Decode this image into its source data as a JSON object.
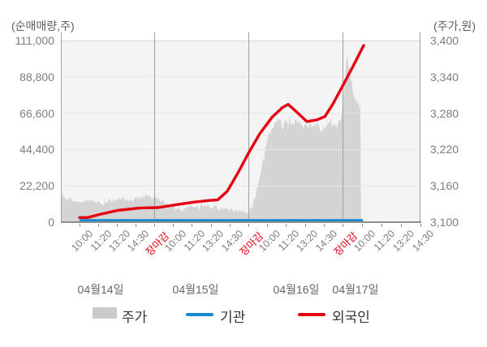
{
  "header": {
    "left_axis_title": "(순매매량,주)",
    "right_axis_title": "(주가,원)"
  },
  "colors": {
    "red": "#e60012",
    "blue": "#1588d1",
    "area": "#d4d4d4",
    "legend_area": "#cbcbcb",
    "grid": "#e7e7e7",
    "top_border": "#d6d6d6",
    "boundary": "#9f9f9f",
    "axis_text": "#7e7e7e",
    "close_text": "#e60012"
  },
  "chart_data": {
    "type": "area+line combo (intraday price area with cumulative net-buying lines)",
    "left_axis": {
      "title": "(순매매량,주)",
      "min": 0,
      "max": 111000,
      "ticks": [
        "111,000",
        "88,800",
        "66,600",
        "44,400",
        "22,200",
        "0"
      ]
    },
    "right_axis": {
      "title": "(주가,원)",
      "min": 3100,
      "max": 3400,
      "ticks": [
        "3,400",
        "3,340",
        "3,280",
        "3,220",
        "3,160",
        "3,100"
      ]
    },
    "x_axis": {
      "close_label": "장마감",
      "days": [
        {
          "label": "04월14일",
          "times": [
            "10:00",
            "11:20",
            "13:20",
            "14:30",
            "장마감"
          ]
        },
        {
          "label": "04월15일",
          "times": [
            "10:00",
            "11:20",
            "13:20",
            "14:30",
            "장마감"
          ]
        },
        {
          "label": "04월16일",
          "times": [
            "10:00",
            "11:20",
            "13:20",
            "14:30",
            "장마감"
          ]
        },
        {
          "label": "04월17일",
          "times": [
            "10:00",
            "11:20",
            "13:20",
            "14:30"
          ]
        }
      ]
    },
    "series": [
      {
        "name": "주가",
        "type": "area",
        "axis": "right",
        "points": [
          [
            0.002,
            3148
          ],
          [
            0.011,
            3140
          ],
          [
            0.034,
            3136
          ],
          [
            0.056,
            3134
          ],
          [
            0.079,
            3138
          ],
          [
            0.102,
            3133
          ],
          [
            0.124,
            3131
          ],
          [
            0.147,
            3136
          ],
          [
            0.169,
            3140
          ],
          [
            0.192,
            3136
          ],
          [
            0.214,
            3141
          ],
          [
            0.237,
            3144
          ],
          [
            0.255,
            3142
          ],
          [
            0.273,
            3138
          ],
          [
            0.293,
            3130
          ],
          [
            0.316,
            3124
          ],
          [
            0.339,
            3122
          ],
          [
            0.361,
            3126
          ],
          [
            0.384,
            3124
          ],
          [
            0.406,
            3127
          ],
          [
            0.429,
            3124
          ],
          [
            0.451,
            3121
          ],
          [
            0.474,
            3120
          ],
          [
            0.497,
            3117
          ],
          [
            0.515,
            3116
          ],
          [
            0.526,
            3120
          ],
          [
            0.535,
            3132
          ],
          [
            0.544,
            3152
          ],
          [
            0.553,
            3176
          ],
          [
            0.562,
            3202
          ],
          [
            0.571,
            3228
          ],
          [
            0.58,
            3246
          ],
          [
            0.589,
            3258
          ],
          [
            0.598,
            3264
          ],
          [
            0.607,
            3270
          ],
          [
            0.616,
            3259
          ],
          [
            0.625,
            3264
          ],
          [
            0.634,
            3268
          ],
          [
            0.643,
            3261
          ],
          [
            0.655,
            3265
          ],
          [
            0.666,
            3262
          ],
          [
            0.677,
            3260
          ],
          [
            0.688,
            3262
          ],
          [
            0.7,
            3257
          ],
          [
            0.711,
            3259
          ],
          [
            0.722,
            3255
          ],
          [
            0.734,
            3257
          ],
          [
            0.745,
            3260
          ],
          [
            0.756,
            3256
          ],
          [
            0.767,
            3258
          ],
          [
            0.777,
            3266
          ],
          [
            0.783,
            3290
          ],
          [
            0.788,
            3322
          ],
          [
            0.792,
            3352
          ],
          [
            0.797,
            3380
          ],
          [
            0.801,
            3362
          ],
          [
            0.806,
            3338
          ],
          [
            0.813,
            3318
          ],
          [
            0.819,
            3304
          ],
          [
            0.826,
            3295
          ],
          [
            0.833,
            3290
          ],
          [
            0.835,
            3287
          ]
        ]
      },
      {
        "name": "기관",
        "type": "line",
        "axis": "left",
        "points": [
          [
            0.052,
            1100
          ],
          [
            0.84,
            1100
          ]
        ]
      },
      {
        "name": "외국인",
        "type": "line",
        "axis": "left",
        "points": [
          [
            0.052,
            2800
          ],
          [
            0.075,
            2800
          ],
          [
            0.113,
            5000
          ],
          [
            0.158,
            7200
          ],
          [
            0.219,
            8600
          ],
          [
            0.271,
            8900
          ],
          [
            0.316,
            10500
          ],
          [
            0.372,
            12300
          ],
          [
            0.413,
            13300
          ],
          [
            0.436,
            13600
          ],
          [
            0.463,
            19000
          ],
          [
            0.492,
            30000
          ],
          [
            0.524,
            43000
          ],
          [
            0.553,
            54000
          ],
          [
            0.587,
            64000
          ],
          [
            0.616,
            70000
          ],
          [
            0.632,
            72000
          ],
          [
            0.655,
            67500
          ],
          [
            0.684,
            61500
          ],
          [
            0.711,
            62500
          ],
          [
            0.734,
            64500
          ],
          [
            0.756,
            72000
          ],
          [
            0.783,
            83000
          ],
          [
            0.813,
            95500
          ],
          [
            0.842,
            108000
          ]
        ]
      }
    ]
  },
  "legend": [
    {
      "label": "주가",
      "swatch": "area"
    },
    {
      "label": "기관",
      "swatch": "line-blue"
    },
    {
      "label": "외국인",
      "swatch": "line-red"
    }
  ]
}
